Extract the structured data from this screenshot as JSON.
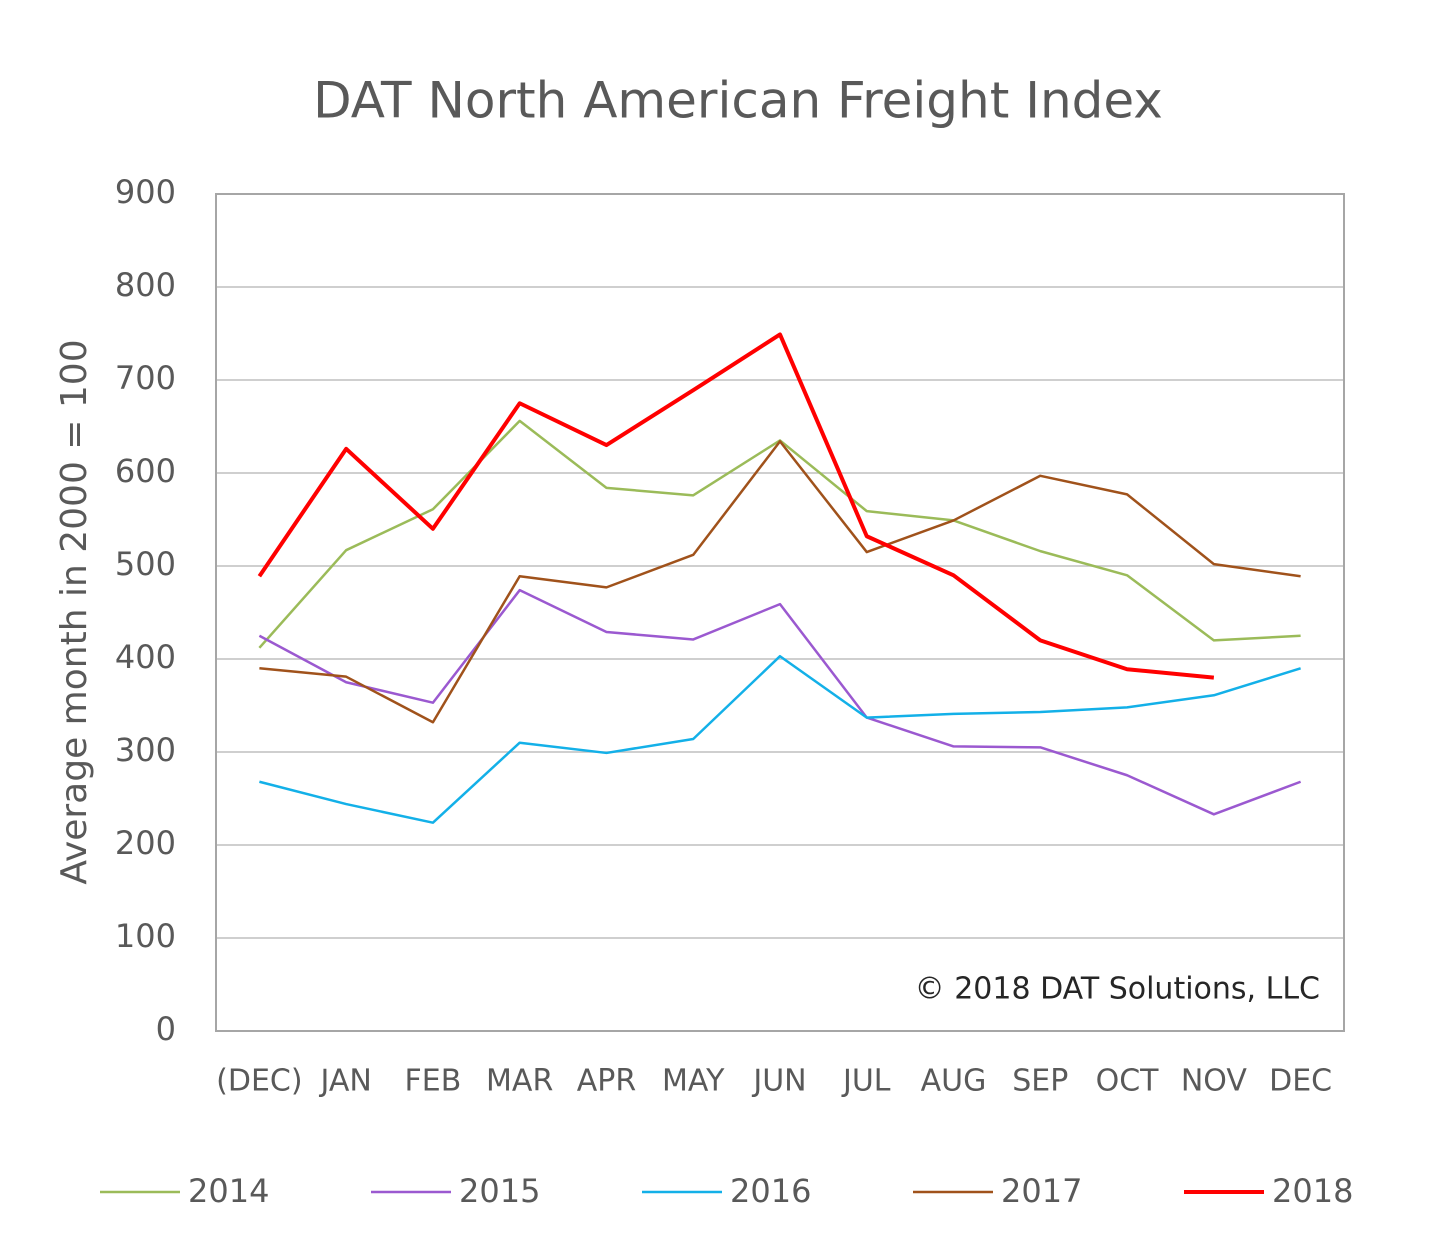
{
  "chart_data": {
    "type": "line",
    "title": "DAT North American Freight Index",
    "y_label": "Average month in 2000 = 100",
    "annotation": "© 2018 DAT Solutions, LLC",
    "categories": [
      "(DEC)",
      "JAN",
      "FEB",
      "MAR",
      "APR",
      "MAY",
      "JUN",
      "JUL",
      "AUG",
      "SEP",
      "OCT",
      "NOV",
      "DEC"
    ],
    "ylim": [
      0,
      900
    ],
    "yticks": [
      0,
      100,
      200,
      300,
      400,
      500,
      600,
      700,
      800,
      900
    ],
    "grid": true,
    "legend": "bottom",
    "series": [
      {
        "name": "2014",
        "color": "#9bbb59",
        "values": [
          412,
          517,
          561,
          656,
          584,
          576,
          635,
          559,
          549,
          516,
          490,
          420,
          425
        ]
      },
      {
        "name": "2015",
        "color": "#9b59d0",
        "values": [
          425,
          375,
          353,
          474,
          429,
          421,
          459,
          337,
          306,
          305,
          275,
          233,
          268
        ]
      },
      {
        "name": "2016",
        "color": "#13b0e8",
        "values": [
          268,
          244,
          224,
          310,
          299,
          314,
          403,
          337,
          341,
          343,
          348,
          361,
          390
        ]
      },
      {
        "name": "2017",
        "color": "#a0521b",
        "values": [
          390,
          381,
          332,
          489,
          477,
          512,
          634,
          515,
          549,
          597,
          577,
          502,
          489
        ]
      },
      {
        "name": "2018",
        "color": "#ff0000",
        "values": [
          489,
          626,
          540,
          675,
          630,
          689,
          749,
          532,
          490,
          420,
          389,
          380,
          null
        ]
      }
    ]
  }
}
